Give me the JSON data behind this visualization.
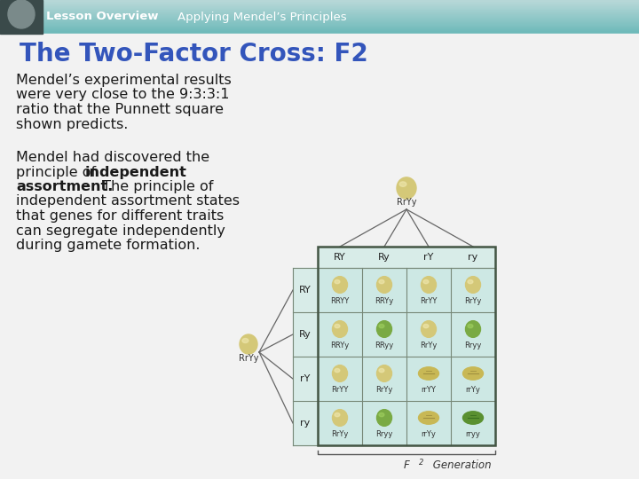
{
  "title": "The Two-Factor Cross: F2",
  "title_color": "#3355bb",
  "title_fontsize": 20,
  "header_text1": "Lesson Overview",
  "header_text2": "Applying Mendel’s Principles",
  "body_text1_line1": "Mendel’s experimental results",
  "body_text1_line2": "were very close to the 9:3:3:1",
  "body_text1_line3": "ratio that the Punnett square",
  "body_text1_line4": "shown predicts.",
  "body_text2_line1": "Mendel had discovered the",
  "body_text2_line2": "principle of ",
  "body_text2_bold1": "independent",
  "body_text2_bold2": "assortment.",
  "body_text2_line3": " The principle of",
  "body_text2_line4": "independent assortment states",
  "body_text2_line5": "that genes for different traits",
  "body_text2_line6": "can segregate independently",
  "body_text2_line7": "during gamete formation.",
  "col_labels": [
    "RY",
    "Ry",
    "rY",
    "ry"
  ],
  "row_labels": [
    "RY",
    "Ry",
    "rY",
    "ry"
  ],
  "cell_labels": [
    [
      "RRYY",
      "RRYy",
      "RrYY",
      "RrYy"
    ],
    [
      "RRYy",
      "RRyy",
      "RrYy",
      "Rryy"
    ],
    [
      "RrYY",
      "RrYy",
      "rrYY",
      "rrYy"
    ],
    [
      "RrYy",
      "Rryy",
      "rrYy",
      "rryy"
    ]
  ],
  "top_parent_label": "RrYy",
  "left_parent_label": "RrYy",
  "f2_label": "F",
  "f2_sub": "2",
  "f2_rest": " Generation",
  "pea_yellow_round": "#d4c878",
  "pea_yellow_wrinkled": "#c8b855",
  "pea_green_round": "#7aaa44",
  "pea_green_wrinkled": "#5a9030",
  "pea_light_round": "#e8dca0",
  "grid_bg": "#cde8e4",
  "label_bg": "#d8ece8",
  "header_grad_top": "#6ab8b8",
  "header_grad_bottom": "#b0d4d4",
  "body_bg": "#e8e8e8",
  "dark_text": "#1a1a1a",
  "border_color": "#778877"
}
